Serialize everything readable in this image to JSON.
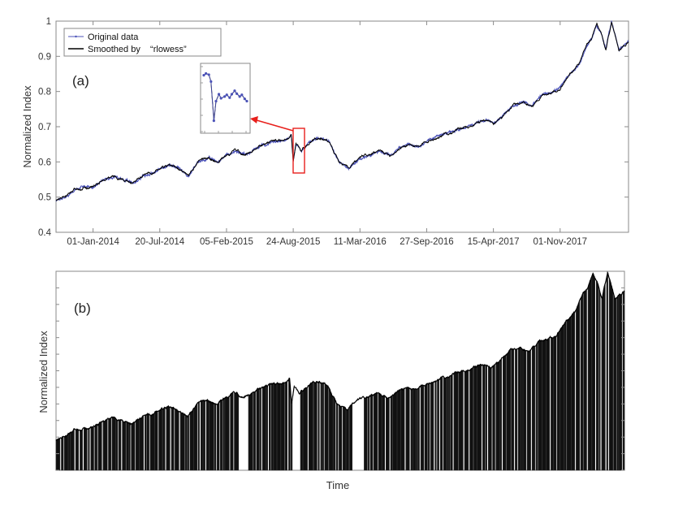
{
  "chart_data": [
    {
      "panel": "(a)",
      "type": "line",
      "title": "",
      "xlabel": "",
      "ylabel": "Normalized Index",
      "ylim": [
        0.4,
        1.0
      ],
      "yticks": [
        "0.4",
        "0.5",
        "0.6",
        "0.7",
        "0.8",
        "0.9",
        "1"
      ],
      "xlim": [
        "2013-09-12",
        "2018-05-25"
      ],
      "xticks": [
        "01-Jan-2014",
        "20-Jul-2014",
        "05-Feb-2015",
        "24-Aug-2015",
        "11-Mar-2016",
        "27-Sep-2016",
        "15-Apr-2017",
        "01-Nov-2017"
      ],
      "grid": false,
      "legend_position": "top-left",
      "series": [
        {
          "name": "Original data",
          "color": "#4b52b8",
          "x": [
            "2013-09-12",
            "2013-10-10",
            "2013-11-08",
            "2013-12-06",
            "2014-01-01",
            "2014-02-03",
            "2014-03-05",
            "2014-04-03",
            "2014-05-02",
            "2014-06-01",
            "2014-06-30",
            "2014-07-20",
            "2014-08-18",
            "2014-09-16",
            "2014-10-14",
            "2014-11-13",
            "2014-12-12",
            "2015-01-09",
            "2015-02-05",
            "2015-03-06",
            "2015-04-04",
            "2015-05-04",
            "2015-06-02",
            "2015-06-30",
            "2015-07-29",
            "2015-08-10",
            "2015-08-18",
            "2015-08-24",
            "2015-09-01",
            "2015-09-18",
            "2015-10-13",
            "2015-11-12",
            "2015-12-10",
            "2016-01-08",
            "2016-02-06",
            "2016-03-11",
            "2016-04-10",
            "2016-05-10",
            "2016-06-09",
            "2016-07-08",
            "2016-08-06",
            "2016-09-05",
            "2016-09-27",
            "2016-10-27",
            "2016-11-26",
            "2016-12-26",
            "2017-01-26",
            "2017-02-24",
            "2017-03-26",
            "2017-04-15",
            "2017-05-14",
            "2017-06-13",
            "2017-07-12",
            "2017-08-10",
            "2017-09-09",
            "2017-10-08",
            "2017-11-01",
            "2017-12-01",
            "2017-12-30",
            "2018-01-20",
            "2018-02-04",
            "2018-02-19",
            "2018-03-06",
            "2018-03-18",
            "2018-04-04",
            "2018-04-26",
            "2018-05-25"
          ],
          "y": [
            0.49,
            0.5,
            0.52,
            0.53,
            0.53,
            0.55,
            0.56,
            0.55,
            0.54,
            0.56,
            0.57,
            0.58,
            0.59,
            0.58,
            0.56,
            0.6,
            0.61,
            0.6,
            0.62,
            0.63,
            0.62,
            0.64,
            0.65,
            0.66,
            0.66,
            0.67,
            0.68,
            0.6,
            0.65,
            0.63,
            0.66,
            0.67,
            0.66,
            0.6,
            0.58,
            0.61,
            0.62,
            0.63,
            0.62,
            0.64,
            0.65,
            0.64,
            0.66,
            0.67,
            0.68,
            0.69,
            0.7,
            0.71,
            0.72,
            0.71,
            0.73,
            0.76,
            0.77,
            0.76,
            0.79,
            0.8,
            0.81,
            0.85,
            0.88,
            0.93,
            0.95,
            0.99,
            0.96,
            0.92,
            1.0,
            0.92,
            0.94
          ]
        },
        {
          "name": "Smoothed by    “rlowess”",
          "color": "#000000",
          "x": [
            "2013-09-12",
            "2013-10-10",
            "2013-11-08",
            "2013-12-06",
            "2014-01-01",
            "2014-02-03",
            "2014-03-05",
            "2014-04-03",
            "2014-05-02",
            "2014-06-01",
            "2014-06-30",
            "2014-07-20",
            "2014-08-18",
            "2014-09-16",
            "2014-10-14",
            "2014-11-13",
            "2014-12-12",
            "2015-01-09",
            "2015-02-05",
            "2015-03-06",
            "2015-04-04",
            "2015-05-04",
            "2015-06-02",
            "2015-06-30",
            "2015-07-29",
            "2015-08-10",
            "2015-08-18",
            "2015-08-24",
            "2015-09-01",
            "2015-09-18",
            "2015-10-13",
            "2015-11-12",
            "2015-12-10",
            "2016-01-08",
            "2016-02-06",
            "2016-03-11",
            "2016-04-10",
            "2016-05-10",
            "2016-06-09",
            "2016-07-08",
            "2016-08-06",
            "2016-09-05",
            "2016-09-27",
            "2016-10-27",
            "2016-11-26",
            "2016-12-26",
            "2017-01-26",
            "2017-02-24",
            "2017-03-26",
            "2017-04-15",
            "2017-05-14",
            "2017-06-13",
            "2017-07-12",
            "2017-08-10",
            "2017-09-09",
            "2017-10-08",
            "2017-11-01",
            "2017-12-01",
            "2017-12-30",
            "2018-01-20",
            "2018-02-04",
            "2018-02-19",
            "2018-03-06",
            "2018-03-18",
            "2018-04-04",
            "2018-04-26",
            "2018-05-25"
          ],
          "y": [
            0.49,
            0.5,
            0.52,
            0.53,
            0.53,
            0.55,
            0.56,
            0.55,
            0.54,
            0.56,
            0.57,
            0.58,
            0.59,
            0.58,
            0.56,
            0.6,
            0.61,
            0.6,
            0.62,
            0.63,
            0.62,
            0.64,
            0.65,
            0.66,
            0.66,
            0.67,
            0.68,
            0.6,
            0.65,
            0.63,
            0.66,
            0.67,
            0.66,
            0.6,
            0.58,
            0.61,
            0.62,
            0.63,
            0.62,
            0.64,
            0.65,
            0.64,
            0.66,
            0.67,
            0.68,
            0.69,
            0.7,
            0.71,
            0.72,
            0.71,
            0.73,
            0.76,
            0.77,
            0.76,
            0.79,
            0.8,
            0.81,
            0.85,
            0.88,
            0.93,
            0.95,
            0.99,
            0.96,
            0.92,
            1.0,
            0.92,
            0.94
          ]
        }
      ],
      "inset": {
        "x": [
          "2015-08-10",
          "2015-08-13",
          "2015-08-17",
          "2015-08-20",
          "2015-08-24",
          "2015-08-27",
          "2015-08-31",
          "2015-09-03",
          "2015-09-08",
          "2015-09-11",
          "2015-09-15",
          "2015-09-18",
          "2015-09-22",
          "2015-09-25",
          "2015-09-29",
          "2015-10-02",
          "2015-10-06",
          "2015-10-09"
        ],
        "y": [
          0.685,
          0.688,
          0.686,
          0.674,
          0.606,
          0.64,
          0.652,
          0.645,
          0.648,
          0.651,
          0.646,
          0.652,
          0.658,
          0.653,
          0.648,
          0.651,
          0.644,
          0.64
        ],
        "highlight_color": "#e8201c"
      }
    },
    {
      "panel": "(b)",
      "type": "area",
      "title": "",
      "xlabel": "Time",
      "ylabel": "Normalized Index",
      "ylim": [
        0.4,
        1.0
      ],
      "xlim": [
        "2013-09-12",
        "2018-05-25"
      ],
      "grid": false,
      "fill_color": "#111111",
      "gap_windows": [
        [
          "2015-03-20",
          "2015-04-10"
        ],
        [
          "2015-09-01",
          "2015-09-12"
        ],
        [
          "2016-03-01",
          "2016-03-20"
        ]
      ]
    }
  ]
}
